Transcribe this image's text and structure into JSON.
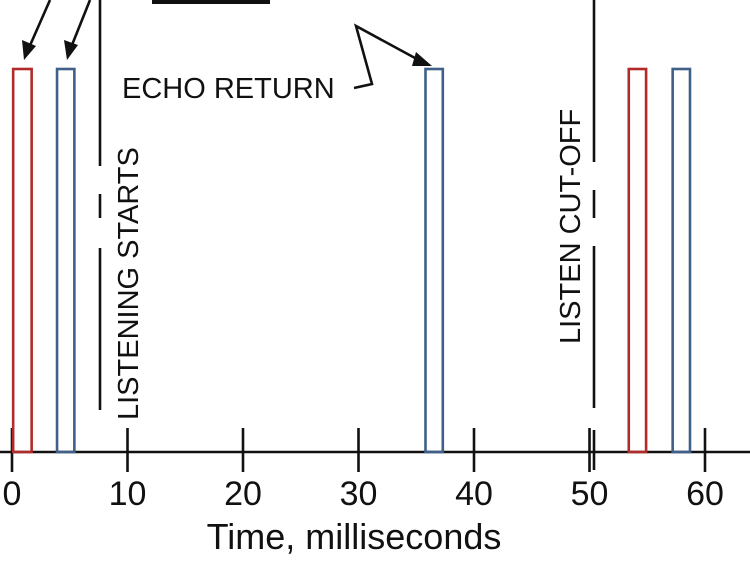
{
  "x_axis": {
    "title": "Time, milliseconds",
    "tick_labels": [
      "0",
      "10",
      "20",
      "30",
      "40",
      "50",
      "60"
    ],
    "tick_values": [
      0,
      10,
      20,
      30,
      40,
      50,
      60
    ]
  },
  "pulses": [
    {
      "start": 0.1,
      "end": 1.7,
      "color": "#b22a2a",
      "kind": "transmitted"
    },
    {
      "start": 3.9,
      "end": 5.4,
      "color": "#3f6088",
      "kind": "transmitted"
    },
    {
      "start": 35.8,
      "end": 37.3,
      "color": "#3f6088",
      "kind": "echo"
    },
    {
      "start": 53.4,
      "end": 54.9,
      "color": "#b22a2a",
      "kind": "transmitted"
    },
    {
      "start": 57.2,
      "end": 58.7,
      "color": "#3f6088",
      "kind": "transmitted"
    }
  ],
  "annotations": {
    "listening_starts": "LISTENING STARTS",
    "listen_cutoff": "LISTEN CUT-OFF",
    "echo_return": "ECHO RETURN"
  },
  "markers": {
    "listening_starts_time": 7.6,
    "listen_cutoff_time": 50
  },
  "colors": {
    "red_pulse": "#b22a2a",
    "blue_pulse": "#3f6088",
    "line": "#111111"
  }
}
